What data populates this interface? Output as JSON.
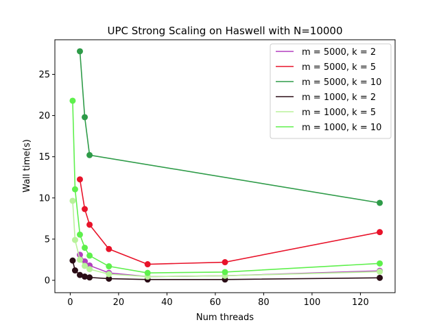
{
  "chart_data": {
    "type": "line",
    "title": "UPC Strong Scaling on Haswell with N=10000",
    "xlabel": "Num threads",
    "ylabel": "Wall time(s)",
    "xlim": [
      -6.35,
      134.35
    ],
    "ylim": [
      -1.5,
      29.2
    ],
    "xticks": [
      0,
      20,
      40,
      60,
      80,
      100,
      120
    ],
    "yticks": [
      0,
      5,
      10,
      15,
      20,
      25
    ],
    "grid": false,
    "legend_position": "upper right",
    "series": [
      {
        "name": "m = 5000, k = 2",
        "color": "#b33fbf",
        "x": [
          4,
          6,
          8,
          16,
          32,
          64,
          128
        ],
        "y": [
          3.1,
          2.3,
          1.8,
          0.9,
          0.45,
          0.55,
          1.15
        ]
      },
      {
        "name": "m = 5000, k = 5",
        "color": "#e8132a",
        "x": [
          4,
          6,
          8,
          16,
          32,
          64,
          128
        ],
        "y": [
          12.25,
          8.65,
          6.75,
          3.8,
          1.95,
          2.2,
          5.85
        ]
      },
      {
        "name": "m = 5000, k = 10",
        "color": "#2e9b48",
        "x": [
          4,
          6,
          8,
          128
        ],
        "y": [
          27.8,
          19.8,
          15.2,
          9.4
        ]
      },
      {
        "name": "m = 1000, k = 2",
        "color": "#2a0d16",
        "x": [
          1,
          2,
          4,
          6,
          8,
          16,
          32,
          64,
          128
        ],
        "y": [
          2.4,
          1.2,
          0.65,
          0.45,
          0.35,
          0.2,
          0.1,
          0.1,
          0.3
        ]
      },
      {
        "name": "m = 1000, k = 5",
        "color": "#b8f29a",
        "x": [
          1,
          2,
          4,
          6,
          8,
          16,
          32,
          64,
          128
        ],
        "y": [
          9.65,
          4.9,
          2.5,
          1.75,
          1.35,
          0.75,
          0.45,
          0.55,
          1.05
        ]
      },
      {
        "name": "m = 1000, k = 10",
        "color": "#5ef04c",
        "x": [
          1,
          2,
          4,
          6,
          8,
          16,
          32,
          64,
          128
        ],
        "y": [
          21.8,
          11.05,
          5.55,
          3.95,
          3.0,
          1.7,
          0.9,
          1.0,
          2.05
        ]
      }
    ]
  }
}
